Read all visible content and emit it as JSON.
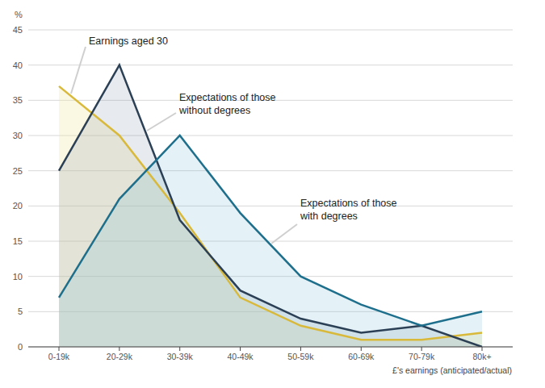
{
  "chart_data": {
    "type": "area",
    "y_label": "%",
    "x_label": "£'s earnings (anticipated/actual)",
    "categories": [
      "0-19k",
      "20-29k",
      "30-39k",
      "40-49k",
      "50-59k",
      "60-69k",
      "70-79k",
      "80k+"
    ],
    "series": [
      {
        "name": "Earnings aged 30",
        "color": "#d9b93a",
        "values": [
          37,
          30,
          19,
          7,
          3,
          1,
          1,
          2
        ]
      },
      {
        "name": "Expectations of those without degrees",
        "color": "#2b3f55",
        "values": [
          25,
          40,
          18,
          8,
          4,
          2,
          3,
          0
        ]
      },
      {
        "name": "Expectations of those with degrees",
        "color": "#1e6f8c",
        "values": [
          7,
          21,
          30,
          19,
          10,
          6,
          3,
          5
        ]
      }
    ],
    "ylim": [
      0,
      45
    ],
    "yticks": [
      0,
      5,
      10,
      15,
      20,
      25,
      30,
      35,
      40,
      45
    ],
    "grid": true
  }
}
